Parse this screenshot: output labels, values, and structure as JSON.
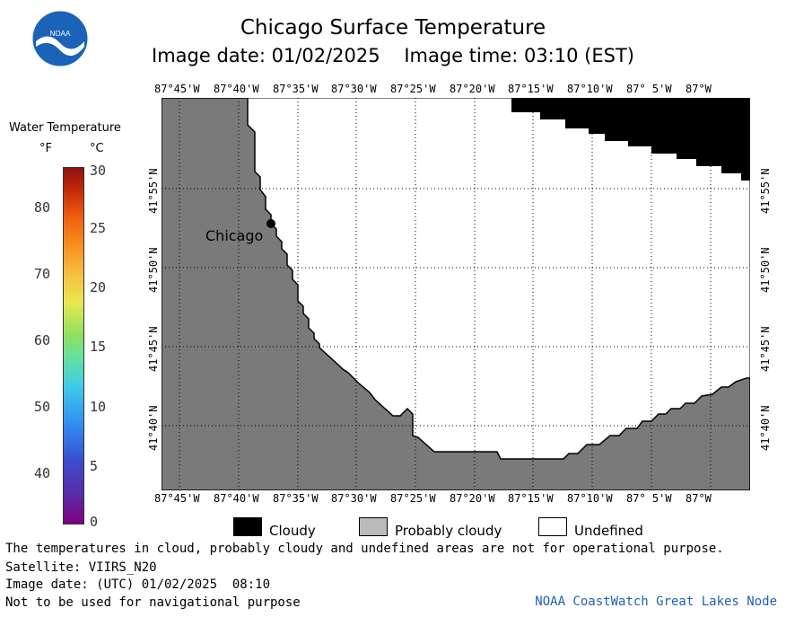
{
  "header": {
    "title": "Chicago Surface Temperature",
    "subtitle": "Image date: 01/02/2025    Image time: 03:10 (EST)"
  },
  "logo": {
    "text": "NOAA",
    "icon": "noaa-logo"
  },
  "map": {
    "x_ticks": [
      "87°45'W",
      "87°40'W",
      "87°35'W",
      "87°30'W",
      "87°25'W",
      "87°20'W",
      "87°15'W",
      "87°10'W",
      "87° 5'W",
      "87°W"
    ],
    "y_ticks": [
      "41°55'N",
      "41°50'N",
      "41°45'N",
      "41°40'N"
    ],
    "city_label": "Chicago",
    "colors": {
      "land": "#7a7a7a",
      "cloudy": "#000000",
      "undefined": "#ffffff",
      "probably_cloudy": "#bbbbbb"
    }
  },
  "colorbar": {
    "title": "Water Temperature",
    "unit_f": "°F",
    "unit_c": "°C",
    "f_labels": [
      "80",
      "70",
      "60",
      "50",
      "40"
    ],
    "c_labels": [
      "30",
      "25",
      "20",
      "15",
      "10",
      "5",
      "0"
    ]
  },
  "legend": {
    "items": [
      {
        "label": "Cloudy",
        "color": "#000000"
      },
      {
        "label": "Probably cloudy",
        "color": "#bbbbbb"
      },
      {
        "label": "Undefined",
        "color": "#ffffff"
      }
    ]
  },
  "notes": {
    "disclaimer": "The temperatures in cloud, probably cloudy and undefined areas are not for operational purpose.",
    "satellite": "Satellite: VIIRS_N20",
    "utc_date": "Image date: (UTC) 01/02/2025  08:10",
    "navigation": "Not to be used for navigational purpose",
    "credit": "NOAA CoastWatch Great Lakes Node"
  }
}
